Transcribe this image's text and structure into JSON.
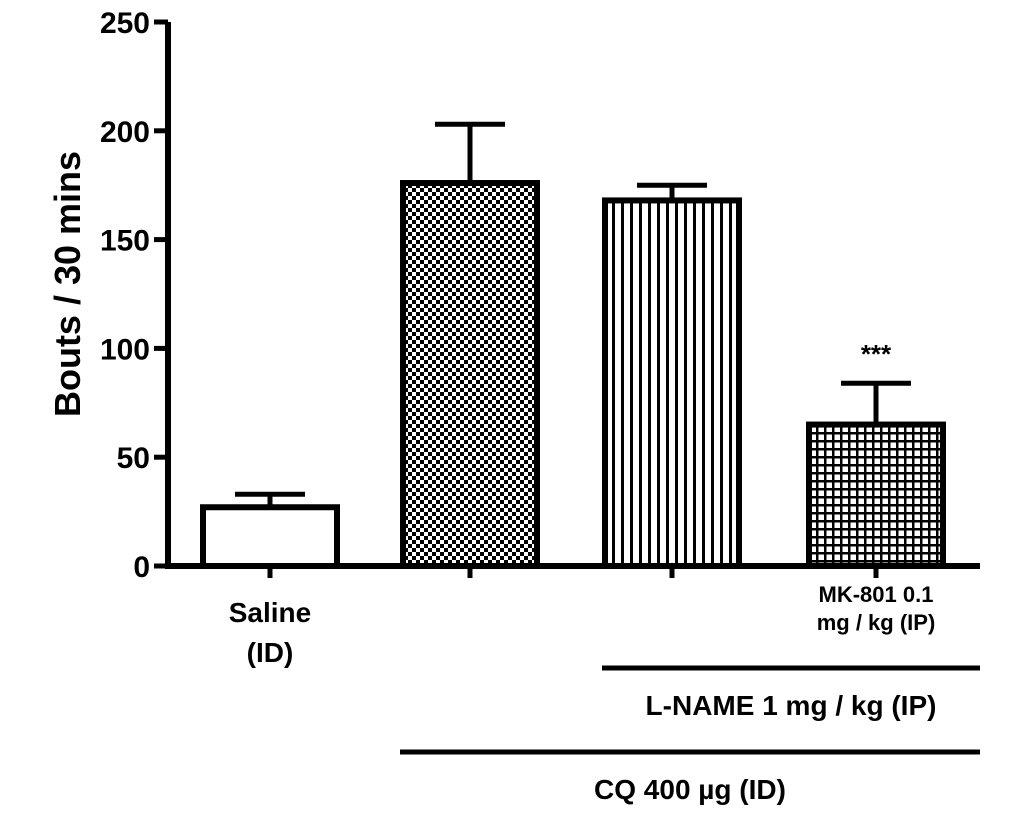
{
  "chart_data": {
    "type": "bar",
    "title": "",
    "xlabel": "",
    "ylabel": "Bouts / 30 mins",
    "ylim": [
      0,
      250
    ],
    "yticks": [
      0,
      50,
      100,
      150,
      200,
      250
    ],
    "grid": false,
    "categories": [
      {
        "lines": [
          "Saline",
          "(ID)"
        ],
        "small": false
      },
      {
        "lines": [],
        "small": false
      },
      {
        "lines": [],
        "small": false
      },
      {
        "lines": [
          "MK-801 0.1",
          "mg / kg (IP)"
        ],
        "small": true
      }
    ],
    "values": [
      27,
      176,
      168,
      65
    ],
    "errors": [
      6,
      27,
      7,
      19
    ],
    "patterns": [
      "none",
      "checker",
      "vertical",
      "grid"
    ],
    "annotations": [
      {
        "bar": 3,
        "text": "***"
      }
    ],
    "brackets": [
      {
        "from": 2,
        "to": 3,
        "label": "L-NAME 1 mg / kg (IP)"
      },
      {
        "from": 1,
        "to": 3,
        "label": "CQ 400 µg (ID)"
      }
    ],
    "colors": {
      "stroke": "#000000",
      "fill": "#ffffff"
    }
  }
}
